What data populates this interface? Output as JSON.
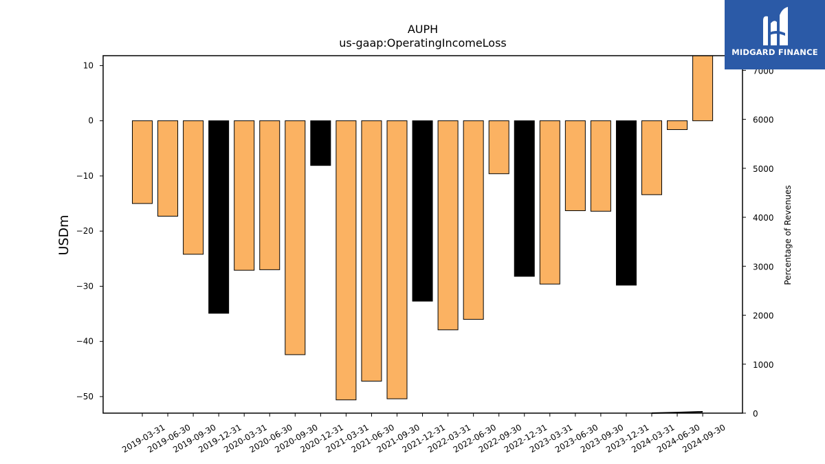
{
  "chart_data": {
    "type": "bar",
    "title": "AUPH",
    "subtitle": "us-gaap:OperatingIncomeLoss",
    "ylabel": "USDm",
    "y2label": "Percentage of Revenues",
    "categories": [
      "2019-03-31",
      "2019-06-30",
      "2019-09-30",
      "2019-12-31",
      "2020-03-31",
      "2020-06-30",
      "2020-09-30",
      "2020-12-31",
      "2021-03-31",
      "2021-06-30",
      "2021-09-30",
      "2021-12-31",
      "2022-03-31",
      "2022-06-30",
      "2022-09-30",
      "2022-12-31",
      "2023-03-31",
      "2023-06-30",
      "2023-09-30",
      "2023-12-31",
      "2024-03-31",
      "2024-06-30",
      "2024-09-30"
    ],
    "values": [
      -15.0,
      -17.3,
      -24.2,
      -34.9,
      -27.1,
      -27.0,
      -42.4,
      -8.1,
      -50.6,
      -47.2,
      -50.4,
      -32.7,
      -37.9,
      -36.0,
      -9.6,
      -28.2,
      -29.6,
      -16.3,
      -16.4,
      -29.8,
      -13.4,
      -1.6,
      11.8
    ],
    "annual_flags": [
      false,
      false,
      false,
      true,
      false,
      false,
      false,
      true,
      false,
      false,
      false,
      true,
      false,
      false,
      false,
      true,
      false,
      false,
      false,
      true,
      false,
      false,
      false
    ],
    "ylim": [
      -53,
      11.8
    ],
    "yticks": [
      10,
      0,
      -10,
      -20,
      -30,
      -40,
      -50
    ],
    "y2lim": [
      0,
      7300
    ],
    "y2ticks": [
      0,
      1000,
      2000,
      3000,
      4000,
      5000,
      6000,
      7000
    ],
    "percentage_of_revenues": {
      "x": [
        "2024-03-31",
        "2024-06-30",
        "2024-09-30"
      ],
      "values": [
        0,
        12,
        28
      ]
    },
    "colors": {
      "quarter_bar": "#fbb262",
      "annual_bar": "#000000",
      "edge": "#000000"
    },
    "grid": false,
    "legend": "none"
  },
  "logo": {
    "text": "MIDGARD FINANCE",
    "background": "#2b5aa7"
  }
}
